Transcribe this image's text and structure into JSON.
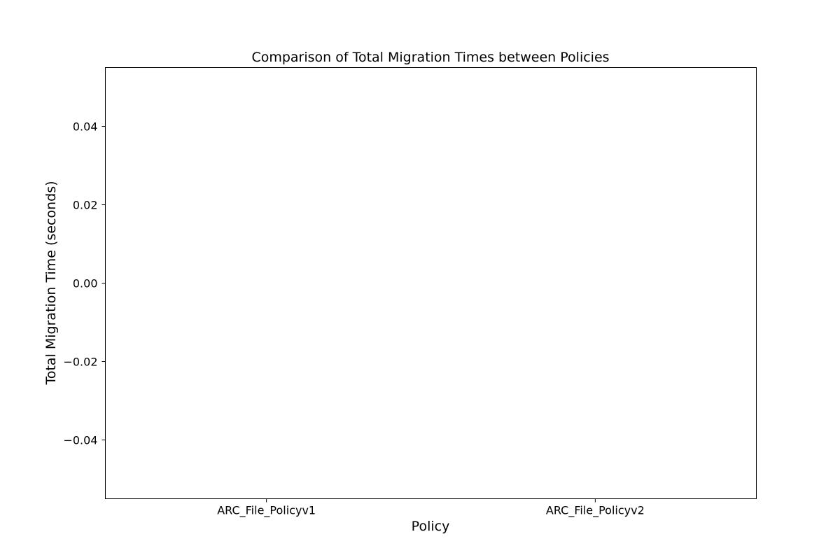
{
  "chart_data": {
    "type": "bar",
    "title": "Comparison of Total Migration Times between Policies",
    "xlabel": "Policy",
    "ylabel": "Total Migration Time (seconds)",
    "categories": [
      "ARC_File_Policyv1",
      "ARC_File_Policyv2"
    ],
    "values": [
      0,
      0
    ],
    "ylim": [
      -0.055,
      0.055
    ],
    "yticks": [
      0.04,
      0.02,
      0.0,
      -0.02,
      -0.04
    ],
    "ytick_labels": [
      "0.04",
      "0.02",
      "0.00",
      "−0.02",
      "−0.04"
    ],
    "grid": false,
    "legend": "none",
    "bar_color": "#1f77b4"
  }
}
